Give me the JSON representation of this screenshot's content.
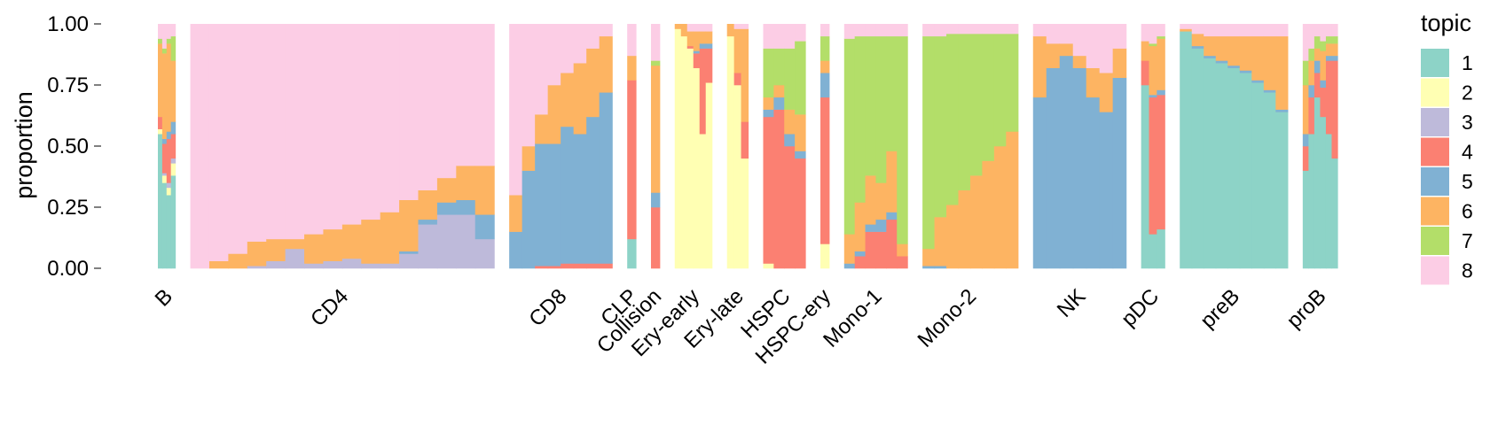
{
  "chart_data": {
    "type": "structure-plot",
    "ylabel": "proportion",
    "ylim": [
      0,
      1
    ],
    "yticks": [
      "0.00",
      "0.25",
      "0.50",
      "0.75",
      "1.00"
    ],
    "legend": {
      "title": "topic",
      "position": "right",
      "entries": [
        {
          "label": "1",
          "color": "#8DD3C7"
        },
        {
          "label": "2",
          "color": "#FFFFB3"
        },
        {
          "label": "3",
          "color": "#BEBADA"
        },
        {
          "label": "4",
          "color": "#FB8072"
        },
        {
          "label": "5",
          "color": "#80B1D3"
        },
        {
          "label": "6",
          "color": "#FDB462"
        },
        {
          "label": "7",
          "color": "#B3DE69"
        },
        {
          "label": "8",
          "color": "#FCCDE5"
        }
      ]
    },
    "topic_order": [
      "1",
      "2",
      "3",
      "4",
      "5",
      "6",
      "7",
      "8"
    ],
    "groups": [
      {
        "label": "B",
        "weight": 1.4,
        "samples": [
          [
            0.55,
            0.02,
            0.0,
            0.05,
            0.0,
            0.3,
            0.02,
            0.06
          ],
          [
            0.35,
            0.03,
            0.01,
            0.12,
            0.02,
            0.35,
            0.02,
            0.1
          ],
          [
            0.3,
            0.03,
            0.02,
            0.18,
            0.03,
            0.36,
            0.02,
            0.06
          ],
          [
            0.38,
            0.05,
            0.02,
            0.1,
            0.05,
            0.25,
            0.1,
            0.05
          ]
        ]
      },
      {
        "label": "CD4",
        "weight": 24.5,
        "samples": [
          [
            0.0,
            0.0,
            0.0,
            0.0,
            0.0,
            0.0,
            0.0,
            1.0
          ],
          [
            0.0,
            0.0,
            0.0,
            0.0,
            0.0,
            0.03,
            0.0,
            0.97
          ],
          [
            0.0,
            0.0,
            0.0,
            0.0,
            0.0,
            0.06,
            0.0,
            0.94
          ],
          [
            0.0,
            0.0,
            0.01,
            0.0,
            0.0,
            0.1,
            0.0,
            0.89
          ],
          [
            0.0,
            0.0,
            0.03,
            0.0,
            0.0,
            0.09,
            0.0,
            0.88
          ],
          [
            0.0,
            0.0,
            0.08,
            0.0,
            0.0,
            0.04,
            0.0,
            0.88
          ],
          [
            0.0,
            0.0,
            0.02,
            0.0,
            0.0,
            0.12,
            0.0,
            0.86
          ],
          [
            0.0,
            0.0,
            0.03,
            0.0,
            0.0,
            0.13,
            0.0,
            0.84
          ],
          [
            0.0,
            0.0,
            0.04,
            0.0,
            0.0,
            0.14,
            0.0,
            0.82
          ],
          [
            0.0,
            0.0,
            0.02,
            0.0,
            0.0,
            0.18,
            0.0,
            0.8
          ],
          [
            0.0,
            0.0,
            0.02,
            0.0,
            0.0,
            0.21,
            0.0,
            0.77
          ],
          [
            0.0,
            0.0,
            0.06,
            0.0,
            0.01,
            0.21,
            0.0,
            0.72
          ],
          [
            0.0,
            0.0,
            0.18,
            0.0,
            0.02,
            0.12,
            0.0,
            0.68
          ],
          [
            0.0,
            0.0,
            0.22,
            0.0,
            0.05,
            0.1,
            0.0,
            0.63
          ],
          [
            0.0,
            0.0,
            0.22,
            0.0,
            0.06,
            0.14,
            0.0,
            0.58
          ],
          [
            0.0,
            0.0,
            0.12,
            0.0,
            0.1,
            0.2,
            0.0,
            0.58
          ]
        ]
      },
      {
        "label": "CD8",
        "weight": 8.3,
        "samples": [
          [
            0.0,
            0.0,
            0.0,
            0.0,
            0.15,
            0.15,
            0.0,
            0.7
          ],
          [
            0.0,
            0.0,
            0.0,
            0.0,
            0.4,
            0.1,
            0.0,
            0.5
          ],
          [
            0.0,
            0.0,
            0.0,
            0.01,
            0.5,
            0.12,
            0.0,
            0.37
          ],
          [
            0.0,
            0.0,
            0.0,
            0.01,
            0.5,
            0.24,
            0.0,
            0.25
          ],
          [
            0.0,
            0.0,
            0.0,
            0.02,
            0.56,
            0.22,
            0.0,
            0.2
          ],
          [
            0.0,
            0.0,
            0.0,
            0.02,
            0.53,
            0.29,
            0.0,
            0.16
          ],
          [
            0.0,
            0.0,
            0.0,
            0.02,
            0.6,
            0.28,
            0.0,
            0.1
          ],
          [
            0.0,
            0.0,
            0.0,
            0.02,
            0.7,
            0.23,
            0.0,
            0.05
          ]
        ]
      },
      {
        "label": "CLP",
        "weight": 0.7,
        "samples": [
          [
            0.12,
            0.0,
            0.0,
            0.65,
            0.0,
            0.1,
            0.0,
            0.13
          ]
        ]
      },
      {
        "label": "Collision",
        "weight": 0.7,
        "samples": [
          [
            0.0,
            0.0,
            0.0,
            0.25,
            0.06,
            0.52,
            0.02,
            0.15
          ]
        ]
      },
      {
        "label": "Ery-early",
        "weight": 3.0,
        "samples": [
          [
            0.0,
            0.98,
            0.0,
            0.0,
            0.0,
            0.02,
            0.0,
            0.0
          ],
          [
            0.0,
            0.95,
            0.0,
            0.0,
            0.0,
            0.05,
            0.0,
            0.0
          ],
          [
            0.0,
            0.9,
            0.0,
            0.01,
            0.0,
            0.06,
            0.0,
            0.03
          ],
          [
            0.0,
            0.82,
            0.0,
            0.06,
            0.01,
            0.08,
            0.0,
            0.03
          ],
          [
            0.0,
            0.55,
            0.0,
            0.35,
            0.02,
            0.05,
            0.0,
            0.03
          ],
          [
            0.0,
            0.76,
            0.0,
            0.14,
            0.02,
            0.05,
            0.0,
            0.03
          ]
        ]
      },
      {
        "label": "Ery-late",
        "weight": 1.7,
        "samples": [
          [
            0.0,
            0.95,
            0.0,
            0.0,
            0.0,
            0.05,
            0.0,
            0.0
          ],
          [
            0.0,
            0.75,
            0.0,
            0.05,
            0.0,
            0.18,
            0.0,
            0.02
          ],
          [
            0.0,
            0.45,
            0.0,
            0.15,
            0.0,
            0.38,
            0.0,
            0.02
          ]
        ]
      },
      {
        "label": "HSPC",
        "weight": 3.4,
        "samples": [
          [
            0.0,
            0.02,
            0.0,
            0.6,
            0.03,
            0.05,
            0.2,
            0.1
          ],
          [
            0.0,
            0.0,
            0.0,
            0.65,
            0.05,
            0.05,
            0.15,
            0.1
          ],
          [
            0.0,
            0.0,
            0.0,
            0.5,
            0.05,
            0.1,
            0.25,
            0.1
          ],
          [
            0.0,
            0.0,
            0.0,
            0.45,
            0.03,
            0.15,
            0.3,
            0.07
          ]
        ]
      },
      {
        "label": "HSPC-ery",
        "weight": 0.7,
        "samples": [
          [
            0.0,
            0.1,
            0.0,
            0.6,
            0.1,
            0.05,
            0.1,
            0.05
          ]
        ]
      },
      {
        "label": "Mono-1",
        "weight": 5.1,
        "samples": [
          [
            0.0,
            0.0,
            0.0,
            0.0,
            0.02,
            0.12,
            0.8,
            0.06
          ],
          [
            0.0,
            0.0,
            0.0,
            0.05,
            0.02,
            0.2,
            0.68,
            0.05
          ],
          [
            0.0,
            0.0,
            0.0,
            0.15,
            0.03,
            0.2,
            0.57,
            0.05
          ],
          [
            0.0,
            0.0,
            0.0,
            0.15,
            0.05,
            0.15,
            0.6,
            0.05
          ],
          [
            0.0,
            0.0,
            0.0,
            0.2,
            0.03,
            0.25,
            0.47,
            0.05
          ],
          [
            0.0,
            0.0,
            0.0,
            0.05,
            0.0,
            0.05,
            0.85,
            0.05
          ]
        ]
      },
      {
        "label": "Mono-2",
        "weight": 7.7,
        "samples": [
          [
            0.0,
            0.0,
            0.0,
            0.0,
            0.01,
            0.07,
            0.87,
            0.05
          ],
          [
            0.0,
            0.0,
            0.0,
            0.0,
            0.01,
            0.2,
            0.74,
            0.05
          ],
          [
            0.0,
            0.0,
            0.0,
            0.0,
            0.0,
            0.26,
            0.7,
            0.04
          ],
          [
            0.0,
            0.0,
            0.0,
            0.0,
            0.0,
            0.32,
            0.64,
            0.04
          ],
          [
            0.0,
            0.0,
            0.0,
            0.0,
            0.0,
            0.38,
            0.58,
            0.04
          ],
          [
            0.0,
            0.0,
            0.0,
            0.0,
            0.0,
            0.44,
            0.52,
            0.04
          ],
          [
            0.0,
            0.0,
            0.0,
            0.0,
            0.0,
            0.5,
            0.46,
            0.04
          ],
          [
            0.0,
            0.0,
            0.0,
            0.0,
            0.0,
            0.56,
            0.4,
            0.04
          ]
        ]
      },
      {
        "label": "NK",
        "weight": 7.5,
        "samples": [
          [
            0.0,
            0.0,
            0.0,
            0.0,
            0.7,
            0.25,
            0.0,
            0.05
          ],
          [
            0.0,
            0.0,
            0.0,
            0.0,
            0.82,
            0.1,
            0.0,
            0.08
          ],
          [
            0.0,
            0.0,
            0.0,
            0.0,
            0.87,
            0.05,
            0.0,
            0.08
          ],
          [
            0.0,
            0.0,
            0.0,
            0.0,
            0.82,
            0.05,
            0.0,
            0.13
          ],
          [
            0.0,
            0.0,
            0.0,
            0.0,
            0.7,
            0.12,
            0.0,
            0.18
          ],
          [
            0.0,
            0.0,
            0.0,
            0.0,
            0.64,
            0.16,
            0.0,
            0.2
          ],
          [
            0.0,
            0.0,
            0.0,
            0.0,
            0.78,
            0.12,
            0.0,
            0.1
          ]
        ]
      },
      {
        "label": "pDC",
        "weight": 1.9,
        "samples": [
          [
            0.75,
            0.0,
            0.0,
            0.1,
            0.0,
            0.08,
            0.0,
            0.07
          ],
          [
            0.14,
            0.0,
            0.0,
            0.56,
            0.01,
            0.2,
            0.01,
            0.08
          ],
          [
            0.16,
            0.0,
            0.0,
            0.55,
            0.02,
            0.21,
            0.01,
            0.05
          ]
        ]
      },
      {
        "label": "preB",
        "weight": 8.7,
        "samples": [
          [
            0.97,
            0.0,
            0.0,
            0.0,
            0.0,
            0.01,
            0.0,
            0.02
          ],
          [
            0.9,
            0.0,
            0.0,
            0.0,
            0.01,
            0.05,
            0.0,
            0.04
          ],
          [
            0.86,
            0.0,
            0.0,
            0.0,
            0.01,
            0.08,
            0.0,
            0.05
          ],
          [
            0.84,
            0.0,
            0.0,
            0.0,
            0.01,
            0.1,
            0.0,
            0.05
          ],
          [
            0.82,
            0.0,
            0.0,
            0.0,
            0.01,
            0.12,
            0.0,
            0.05
          ],
          [
            0.8,
            0.0,
            0.0,
            0.0,
            0.01,
            0.14,
            0.0,
            0.05
          ],
          [
            0.76,
            0.0,
            0.0,
            0.0,
            0.01,
            0.18,
            0.0,
            0.05
          ],
          [
            0.72,
            0.0,
            0.0,
            0.0,
            0.01,
            0.22,
            0.0,
            0.05
          ],
          [
            0.64,
            0.0,
            0.0,
            0.0,
            0.01,
            0.3,
            0.0,
            0.05
          ]
        ]
      },
      {
        "label": "proB",
        "weight": 2.8,
        "samples": [
          [
            0.4,
            0.0,
            0.0,
            0.1,
            0.05,
            0.2,
            0.1,
            0.15
          ],
          [
            0.55,
            0.0,
            0.0,
            0.15,
            0.05,
            0.1,
            0.05,
            0.1
          ],
          [
            0.7,
            0.0,
            0.0,
            0.1,
            0.05,
            0.05,
            0.05,
            0.05
          ],
          [
            0.62,
            0.0,
            0.0,
            0.12,
            0.03,
            0.12,
            0.04,
            0.07
          ],
          [
            0.55,
            0.0,
            0.0,
            0.3,
            0.02,
            0.05,
            0.03,
            0.05
          ],
          [
            0.45,
            0.0,
            0.0,
            0.4,
            0.02,
            0.05,
            0.03,
            0.05
          ]
        ]
      }
    ]
  }
}
